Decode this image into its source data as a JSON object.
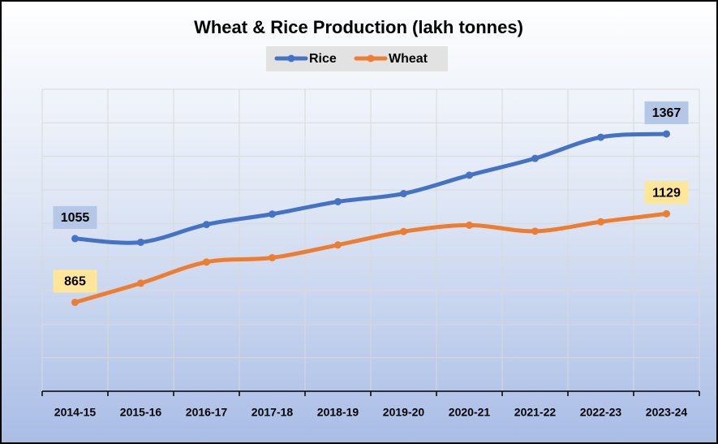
{
  "chart_data": {
    "type": "line",
    "title": "Wheat & Rice Production (lakh tonnes)",
    "categories": [
      "2014-15",
      "2015-16",
      "2016-17",
      "2017-18",
      "2018-19",
      "2019-20",
      "2020-21",
      "2021-22",
      "2022-23",
      "2023-24"
    ],
    "series": [
      {
        "name": "Rice",
        "color": "#4472c4",
        "label_fill": "#b4c7e7",
        "values": [
          1055,
          1044,
          1097,
          1128,
          1165,
          1189,
          1244,
          1294,
          1357,
          1367
        ]
      },
      {
        "name": "Wheat",
        "color": "#ed7d31",
        "label_fill": "#ffe699",
        "values": [
          865,
          922,
          985,
          998,
          1036,
          1076,
          1095,
          1077,
          1105,
          1129
        ]
      }
    ],
    "ylim": [
      600,
      1500
    ],
    "yticks": [
      600,
      700,
      800,
      900,
      1000,
      1100,
      1200,
      1300,
      1400,
      1500
    ],
    "ytick_labels": false,
    "grid": true,
    "smooth": true,
    "data_labels": "first-last",
    "legend": "top"
  }
}
